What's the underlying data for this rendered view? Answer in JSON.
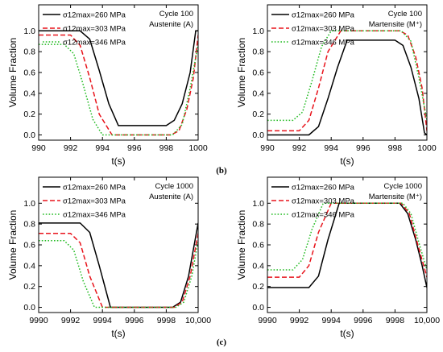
{
  "panel_labels": [
    "(b)",
    "(c)"
  ],
  "chart_data": [
    {
      "type": "line",
      "annotations": [
        "Cycle 100",
        "Austenite (A)"
      ],
      "xlabel": "t(s)",
      "ylabel": "Volume Fraction",
      "xlim": [
        990,
        1000
      ],
      "ylim": [
        -0.05,
        1.25
      ],
      "xticks": [
        990,
        992,
        994,
        996,
        998,
        1000
      ],
      "xtick_labels": [
        "990",
        "992",
        "994",
        "996",
        "998",
        "1000"
      ],
      "yticks": [
        0.0,
        0.2,
        0.4,
        0.6,
        0.8,
        1.0
      ],
      "ytick_labels": [
        "0.0",
        "0.2",
        "0.4",
        "0.6",
        "0.8",
        "1.0"
      ],
      "legend_position": "top-left",
      "series": [
        {
          "name": "σ12max=260 MPa",
          "color": "#000000",
          "dash": "solid",
          "x": [
            990,
            992.6,
            993.2,
            993.8,
            994.4,
            995,
            998,
            998.5,
            999.0,
            999.5,
            999.85,
            1000
          ],
          "y": [
            1.0,
            1.0,
            0.92,
            0.62,
            0.3,
            0.09,
            0.09,
            0.14,
            0.3,
            0.6,
            1.0,
            1.0
          ]
        },
        {
          "name": "σ12max=303 MPa",
          "color": "#e8141c",
          "dash": "dashed",
          "x": [
            990,
            992.0,
            992.6,
            993.2,
            993.8,
            994.6,
            998.3,
            998.8,
            999.3,
            999.7,
            1000
          ],
          "y": [
            0.96,
            0.96,
            0.86,
            0.55,
            0.2,
            0.0,
            0.0,
            0.04,
            0.25,
            0.55,
            0.96
          ]
        },
        {
          "name": "σ12max=346 MPa",
          "color": "#22bb22",
          "dash": "dotted",
          "x": [
            990,
            991.6,
            992.2,
            992.8,
            993.4,
            994.0,
            998.4,
            999.0,
            999.5,
            1000
          ],
          "y": [
            0.87,
            0.87,
            0.78,
            0.48,
            0.15,
            0.0,
            0.0,
            0.1,
            0.45,
            0.87
          ]
        }
      ]
    },
    {
      "type": "line",
      "annotations": [
        "Cycle 100",
        "Martensite (M⁺)"
      ],
      "xlabel": "t(s)",
      "ylabel": "Volume Fraction",
      "xlim": [
        990,
        1000
      ],
      "ylim": [
        -0.05,
        1.25
      ],
      "xticks": [
        990,
        992,
        994,
        996,
        998,
        1000
      ],
      "xtick_labels": [
        "990",
        "992",
        "994",
        "996",
        "998",
        "1000"
      ],
      "yticks": [
        0.0,
        0.2,
        0.4,
        0.6,
        0.8,
        1.0
      ],
      "ytick_labels": [
        "0.0",
        "0.2",
        "0.4",
        "0.6",
        "0.8",
        "1.0"
      ],
      "legend_position": "top-left",
      "series": [
        {
          "name": "σ12max=260 MPa",
          "color": "#000000",
          "dash": "solid",
          "x": [
            990,
            992.6,
            993.2,
            993.8,
            994.4,
            995,
            998,
            998.5,
            999.0,
            999.5,
            999.85,
            1000
          ],
          "y": [
            0.0,
            0.0,
            0.08,
            0.35,
            0.65,
            0.91,
            0.91,
            0.86,
            0.65,
            0.35,
            0.02,
            0.0
          ]
        },
        {
          "name": "σ12max=303 MPa",
          "color": "#e8141c",
          "dash": "dashed",
          "x": [
            990,
            992.0,
            992.6,
            993.2,
            993.8,
            994.6,
            998.3,
            998.8,
            999.3,
            999.7,
            1000
          ],
          "y": [
            0.04,
            0.04,
            0.14,
            0.45,
            0.8,
            1.0,
            1.0,
            0.96,
            0.75,
            0.45,
            0.04
          ]
        },
        {
          "name": "σ12max=346 MPa",
          "color": "#22bb22",
          "dash": "dotted",
          "x": [
            990,
            991.6,
            992.2,
            992.8,
            993.4,
            994.0,
            998.4,
            999.0,
            999.5,
            1000
          ],
          "y": [
            0.14,
            0.14,
            0.22,
            0.52,
            0.85,
            1.0,
            1.0,
            0.9,
            0.55,
            0.14
          ]
        }
      ]
    },
    {
      "type": "line",
      "annotations": [
        "Cycle 1000",
        "Austenite (A)"
      ],
      "xlabel": "t(s)",
      "ylabel": "Volume Fraction",
      "xlim": [
        9990,
        10000
      ],
      "ylim": [
        -0.05,
        1.25
      ],
      "xticks": [
        9990,
        9992,
        9994,
        9996,
        9998,
        10000
      ],
      "xtick_labels": [
        "9990",
        "9992",
        "9994",
        "9996",
        "9998",
        "10,000"
      ],
      "yticks": [
        0.0,
        0.2,
        0.4,
        0.6,
        0.8,
        1.0
      ],
      "ytick_labels": [
        "0.0",
        "0.2",
        "0.4",
        "0.6",
        "0.8",
        "1.0"
      ],
      "legend_position": "top-left",
      "series": [
        {
          "name": "σ12max=260 MPa",
          "color": "#000000",
          "dash": "solid",
          "x": [
            9990,
            9992.6,
            9993.2,
            9993.8,
            9994.5,
            9998.4,
            9998.9,
            9999.4,
            10000
          ],
          "y": [
            0.81,
            0.81,
            0.72,
            0.4,
            0.0,
            0.0,
            0.05,
            0.3,
            0.81
          ]
        },
        {
          "name": "σ12max=303 MPa",
          "color": "#e8141c",
          "dash": "dashed",
          "x": [
            9990,
            9992.0,
            9992.6,
            9993.2,
            9994.0,
            9998.5,
            9999.0,
            9999.5,
            10000
          ],
          "y": [
            0.71,
            0.71,
            0.62,
            0.3,
            0.0,
            0.0,
            0.05,
            0.3,
            0.71
          ]
        },
        {
          "name": "σ12max=346 MPa",
          "color": "#22bb22",
          "dash": "dotted",
          "x": [
            9990,
            9991.6,
            9992.2,
            9992.8,
            9993.5,
            9998.6,
            9999.1,
            9999.6,
            10000
          ],
          "y": [
            0.64,
            0.64,
            0.55,
            0.25,
            0.0,
            0.0,
            0.05,
            0.3,
            0.64
          ]
        }
      ]
    },
    {
      "type": "line",
      "annotations": [
        "Cycle 1000",
        "Martensite (M⁺)"
      ],
      "xlabel": "t(s)",
      "ylabel": "Volume Fraction",
      "xlim": [
        9990,
        10000
      ],
      "ylim": [
        -0.05,
        1.25
      ],
      "xticks": [
        9990,
        9992,
        9994,
        9996,
        9998,
        10000
      ],
      "xtick_labels": [
        "9990",
        "9992",
        "9994",
        "9996",
        "9998",
        "10,000"
      ],
      "yticks": [
        0.0,
        0.2,
        0.4,
        0.6,
        0.8,
        1.0
      ],
      "ytick_labels": [
        "0.0",
        "0.2",
        "0.4",
        "0.6",
        "0.8",
        "1.0"
      ],
      "legend_position": "top-left",
      "series": [
        {
          "name": "σ12max=260 MPa",
          "color": "#000000",
          "dash": "solid",
          "x": [
            9990,
            9992.6,
            9993.2,
            9993.8,
            9994.5,
            9998.3,
            9998.8,
            9999.3,
            9999.7,
            10000
          ],
          "y": [
            0.19,
            0.19,
            0.3,
            0.65,
            1.0,
            1.0,
            0.9,
            0.65,
            0.4,
            0.19
          ]
        },
        {
          "name": "σ12max=303 MPa",
          "color": "#e8141c",
          "dash": "dashed",
          "x": [
            9990,
            9992.0,
            9992.6,
            9993.2,
            9994.0,
            9998.4,
            9998.9,
            9999.4,
            10000
          ],
          "y": [
            0.29,
            0.29,
            0.4,
            0.72,
            1.0,
            1.0,
            0.9,
            0.62,
            0.29
          ]
        },
        {
          "name": "σ12max=346 MPa",
          "color": "#22bb22",
          "dash": "dotted",
          "x": [
            9990,
            9991.6,
            9992.2,
            9992.8,
            9993.5,
            9998.5,
            9999.0,
            9999.5,
            10000
          ],
          "y": [
            0.36,
            0.36,
            0.46,
            0.75,
            1.0,
            1.0,
            0.9,
            0.62,
            0.36
          ]
        }
      ]
    }
  ]
}
